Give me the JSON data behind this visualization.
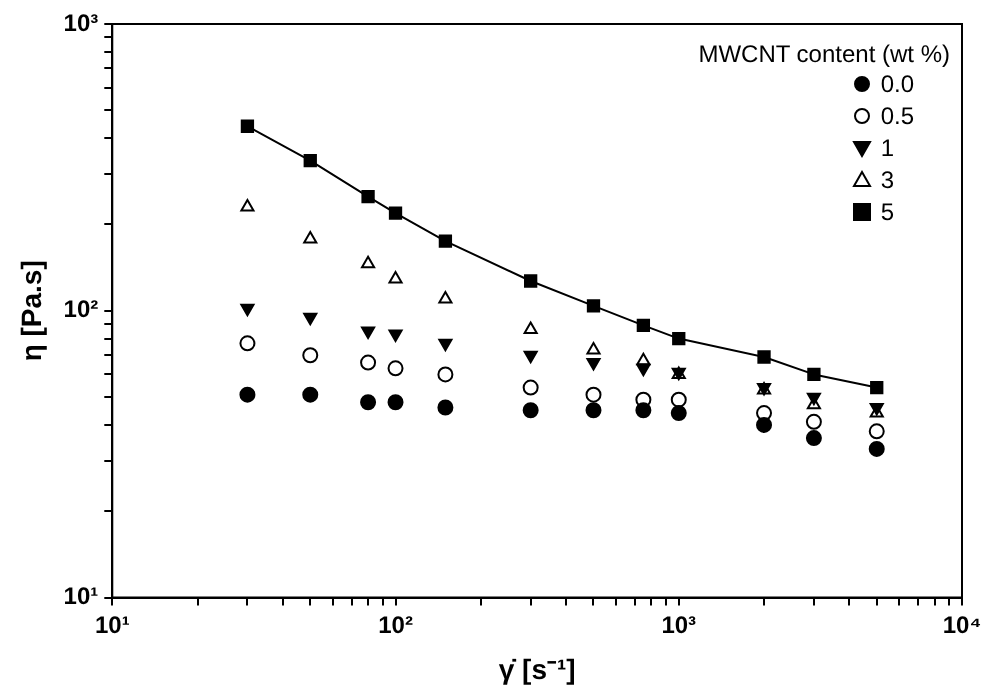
{
  "chart_data": {
    "type": "scatter",
    "xlabel": "γ̇ [s⁻¹]",
    "ylabel": "η [Pa.s]",
    "legend_title": "MWCNT content (wt %)",
    "legend": "top right",
    "log": "xy",
    "grid": false,
    "xlim": [
      10,
      10000
    ],
    "ylim": [
      10,
      1000
    ],
    "xticks": [
      {
        "value": 10,
        "label": "10¹"
      },
      {
        "value": 20,
        "label": null
      },
      {
        "value": 30,
        "label": null
      },
      {
        "value": 40,
        "label": null
      },
      {
        "value": 50,
        "label": null
      },
      {
        "value": 60,
        "label": null
      },
      {
        "value": 70,
        "label": null
      },
      {
        "value": 80,
        "label": null
      },
      {
        "value": 90,
        "label": null
      },
      {
        "value": 100,
        "label": "10²"
      },
      {
        "value": 200,
        "label": null
      },
      {
        "value": 300,
        "label": null
      },
      {
        "value": 400,
        "label": null
      },
      {
        "value": 500,
        "label": null
      },
      {
        "value": 600,
        "label": null
      },
      {
        "value": 700,
        "label": null
      },
      {
        "value": 800,
        "label": null
      },
      {
        "value": 900,
        "label": null
      },
      {
        "value": 1000,
        "label": "10³"
      },
      {
        "value": 2000,
        "label": null
      },
      {
        "value": 3000,
        "label": null
      },
      {
        "value": 4000,
        "label": null
      },
      {
        "value": 5000,
        "label": null
      },
      {
        "value": 6000,
        "label": null
      },
      {
        "value": 7000,
        "label": null
      },
      {
        "value": 8000,
        "label": null
      },
      {
        "value": 9000,
        "label": null
      },
      {
        "value": 10000,
        "label": "10⁴"
      }
    ],
    "yticks": [
      {
        "value": 10,
        "label": "10¹"
      },
      {
        "value": 20,
        "label": null
      },
      {
        "value": 30,
        "label": null
      },
      {
        "value": 40,
        "label": null
      },
      {
        "value": 50,
        "label": null
      },
      {
        "value": 60,
        "label": null
      },
      {
        "value": 70,
        "label": null
      },
      {
        "value": 80,
        "label": null
      },
      {
        "value": 90,
        "label": null
      },
      {
        "value": 100,
        "label": "10²"
      },
      {
        "value": 200,
        "label": null
      },
      {
        "value": 300,
        "label": null
      },
      {
        "value": 400,
        "label": null
      },
      {
        "value": 500,
        "label": null
      },
      {
        "value": 600,
        "label": null
      },
      {
        "value": 700,
        "label": null
      },
      {
        "value": 800,
        "label": null
      },
      {
        "value": 900,
        "label": null
      },
      {
        "value": 1000,
        "label": "10³"
      }
    ],
    "x": [
      30,
      50,
      80,
      100,
      150,
      300,
      500,
      750,
      1000,
      2000,
      3000,
      5000
    ],
    "series": [
      {
        "name": "0.0",
        "color": "#000000",
        "marker": "circle",
        "values": [
          51,
          51,
          48,
          48,
          46,
          45,
          45,
          45,
          44,
          40,
          36,
          33
        ]
      },
      {
        "name": "0.5",
        "color": "#000000",
        "marker": "circle",
        "values": [
          77,
          70,
          66,
          63,
          60,
          54,
          51,
          49,
          49,
          44,
          41,
          38
        ]
      },
      {
        "name": "1",
        "color": "#000000",
        "marker": "triangle-down",
        "values": [
          102,
          95,
          85,
          83,
          77,
          70,
          66,
          63,
          61,
          54,
          50,
          46
        ]
      },
      {
        "name": "3",
        "color": "#000000",
        "marker": "triangle",
        "values": [
          230,
          178,
          146,
          129,
          110,
          86,
          73,
          67,
          60,
          53,
          47,
          44
        ]
      },
      {
        "name": "5",
        "color": "#000000",
        "marker": "square",
        "values": [
          440,
          334,
          250,
          219,
          175,
          127,
          104,
          89,
          80,
          69,
          60,
          54
        ]
      },
      {
        "type": "line",
        "color": "#000000",
        "marker": "none",
        "line_style": "solid",
        "values": [
          440,
          334,
          250,
          219,
          175,
          127,
          104,
          89,
          80,
          69,
          60,
          54
        ]
      }
    ]
  }
}
